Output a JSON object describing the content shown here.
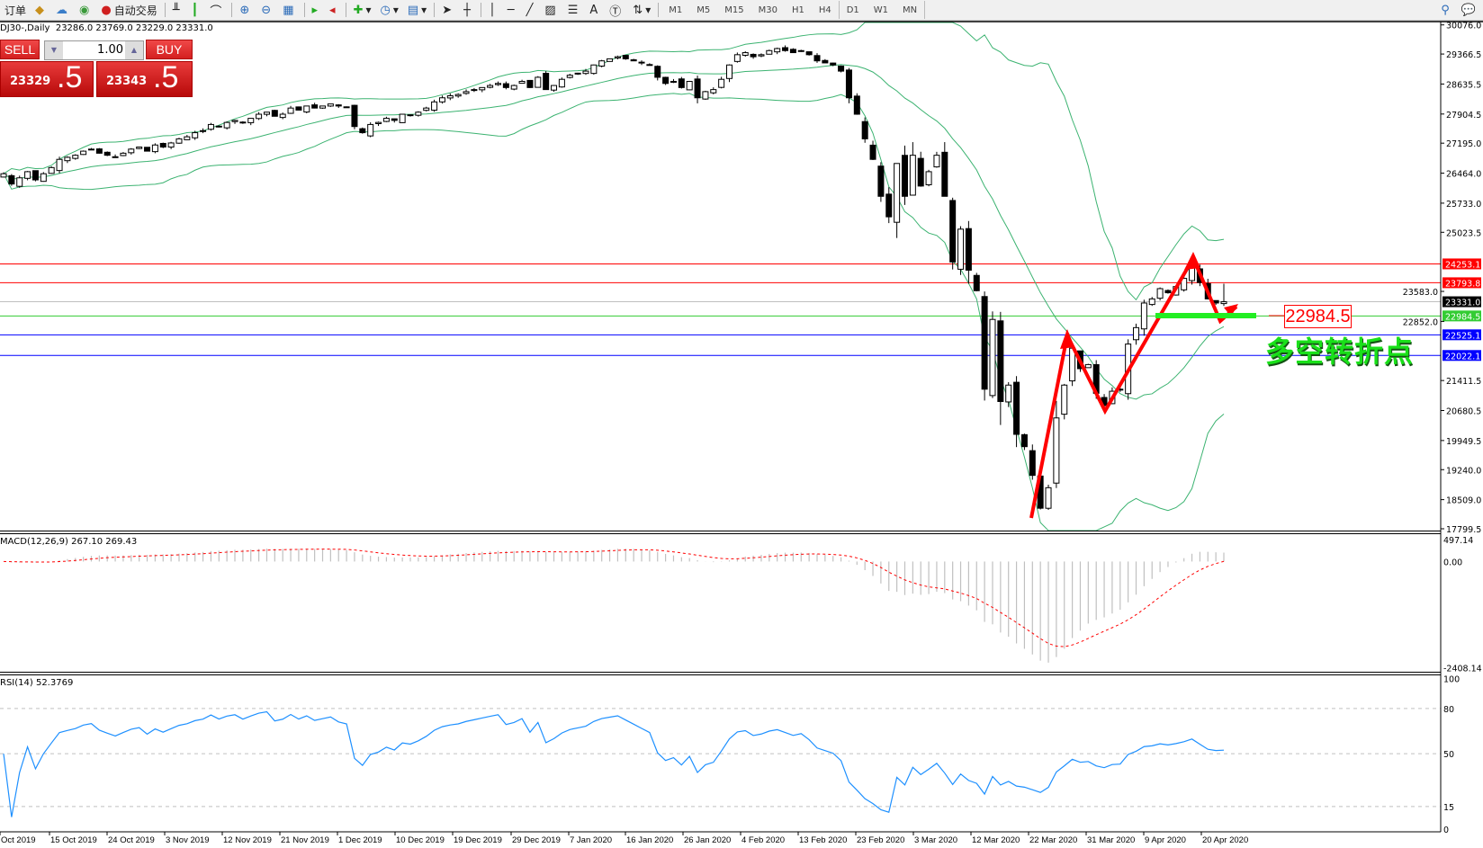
{
  "toolbar": {
    "new_order_label": "订单",
    "autotrading_label": "自动交易",
    "timeframes": [
      "M1",
      "M5",
      "M15",
      "M30",
      "H1",
      "H4",
      "D1",
      "W1",
      "MN"
    ],
    "active_timeframe": "D1"
  },
  "chart_header": {
    "symbol_timeframe": "DJ30-,Daily",
    "ohlc_text": "23286.0 23769.0 23229.0 23331.0"
  },
  "trade_panel": {
    "sell_label": "SELL",
    "buy_label": "BUY",
    "lot": "1.00",
    "sell_price_main": "23329",
    "sell_price_pips": ".5",
    "buy_price_main": "23343",
    "buy_price_pips": ".5"
  },
  "annotation": {
    "price_label": "22984.5",
    "text": "多空转折点"
  },
  "chart_data": {
    "type": "candlestick",
    "symbol": "DJ30-",
    "timeframe": "Daily",
    "last_bar": {
      "open": 23286.0,
      "high": 23769.0,
      "low": 23229.0,
      "close": 23331.0
    },
    "closes": [
      26450,
      26200,
      26350,
      26500,
      26300,
      26450,
      26600,
      26800,
      26850,
      26900,
      27000,
      27050,
      26950,
      26900,
      26850,
      26950,
      27050,
      27100,
      27000,
      27150,
      27100,
      27200,
      27300,
      27350,
      27450,
      27500,
      27650,
      27600,
      27700,
      27750,
      27700,
      27800,
      27900,
      27950,
      27850,
      27900,
      28050,
      28000,
      28100,
      28050,
      28100,
      28150,
      28100,
      28080,
      27600,
      27450,
      27650,
      27700,
      27800,
      27750,
      27900,
      27880,
      27950,
      28050,
      28200,
      28300,
      28350,
      28380,
      28450,
      28500,
      28550,
      28600,
      28650,
      28550,
      28600,
      28700,
      28550,
      28800,
      28500,
      28600,
      28750,
      28850,
      28900,
      28950,
      29100,
      29200,
      29250,
      29300,
      29250,
      29200,
      29150,
      29100,
      28800,
      28650,
      28700,
      28550,
      28700,
      28300,
      28450,
      28500,
      28750,
      29100,
      29350,
      29400,
      29300,
      29350,
      29450,
      29500,
      29450,
      29400,
      29450,
      29350,
      29200,
      29150,
      29100,
      28950,
      28300,
      27900,
      27300,
      26800,
      25900,
      25400,
      26700,
      25900,
      26900,
      26150,
      26500,
      26900,
      25900,
      24300,
      25100,
      24100,
      23600,
      21200,
      22900,
      20900,
      21300,
      20100,
      19800,
      19100,
      18300,
      18800,
      20500,
      21300,
      22200,
      21700,
      21800,
      21100,
      20800,
      21150,
      21200,
      22300,
      22700,
      23300,
      23400,
      23650,
      23550,
      23700,
      23900,
      24200,
      23800,
      23400,
      23300,
      23331
    ],
    "price_axis_ticks": [
      "30076.0",
      "29366.5",
      "28635.5",
      "27904.5",
      "27195.0",
      "26464.0",
      "25733.0",
      "25023.5",
      "23583.0",
      "22852.0",
      "21411.5",
      "20680.5",
      "19949.5",
      "19240.0",
      "18509.0",
      "17799.5"
    ],
    "price_range": [
      17799.5,
      30076.0
    ],
    "date_labels": [
      "Oct 2019",
      "15 Oct 2019",
      "24 Oct 2019",
      "3 Nov 2019",
      "12 Nov 2019",
      "21 Nov 2019",
      "1 Dec 2019",
      "10 Dec 2019",
      "19 Dec 2019",
      "29 Dec 2019",
      "7 Jan 2020",
      "16 Jan 2020",
      "26 Jan 2020",
      "4 Feb 2020",
      "13 Feb 2020",
      "23 Feb 2020",
      "3 Mar 2020",
      "12 Mar 2020",
      "22 Mar 2020",
      "31 Mar 2020",
      "9 Apr 2020",
      "20 Apr 2020"
    ],
    "levels": [
      {
        "price": "24253.1",
        "color": "#ff0000"
      },
      {
        "price": "23793.8",
        "color": "#ff0000"
      },
      {
        "price": "23331.0",
        "color": "#000000"
      },
      {
        "price": "22984.5",
        "color": "#33cc33"
      },
      {
        "price": "22525.1",
        "color": "#0000ff"
      },
      {
        "price": "22022.1",
        "color": "#0000ff"
      }
    ],
    "bollinger": {
      "period": 20,
      "deviation": 2,
      "color": "#3cb371"
    },
    "macd": {
      "label": "MACD(12,26,9) 267.10 269.43",
      "range": [
        -2408.14,
        497.14
      ],
      "ticks": [
        "497.14",
        "0.00",
        "-2408.14"
      ],
      "histogram_color": "#c0c0c0",
      "signal_color": "#ff0000"
    },
    "rsi": {
      "label": "RSI(14) 52.3769",
      "range": [
        0,
        100
      ],
      "ticks": [
        "100",
        "80",
        "50",
        "15",
        "0"
      ],
      "levels": [
        80,
        50,
        15
      ],
      "color": "#1e90ff"
    }
  }
}
